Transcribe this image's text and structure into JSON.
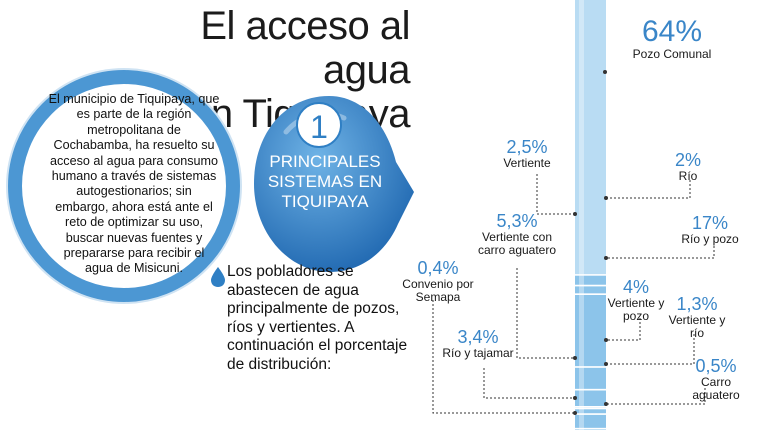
{
  "header": {
    "title_line1": "El acceso al agua",
    "title_line2": "en Tiquipaya"
  },
  "intro": {
    "text": "El municipio de Tiquipaya, que es parte de la región metropolitana de Cochabamba, ha resuelto su acceso al agua para consumo humano a través de sistemas autogestionarios; sin embargo, ahora está ante el reto de optimizar su uso, buscar nuevas fuentes y prepararse para recibir el agua de Misicuni."
  },
  "badge": {
    "number": "1",
    "text": "PRINCIPALES SISTEMAS EN TIQUIPAYA"
  },
  "lower_text": "Los pobladores se abastecen de agua principalmente de pozos, ríos y vertientes. A continuación el porcentaje de distribución:",
  "colors": {
    "accent": "#3a86c8",
    "ring": "#4c97d3",
    "column": "#8cc4ea",
    "column_light": "#b9dcf3"
  },
  "chart_data": {
    "type": "bar",
    "stacked": true,
    "orientation": "vertical",
    "categories": [
      "Pozo Comunal",
      "Vertiente",
      "Río",
      "Río y pozo",
      "Vertiente con carro aguatero",
      "Vertiente y pozo",
      "Convenio por Semapa",
      "Vertiente y río",
      "Río y tajamar",
      "Carro aguatero"
    ],
    "labels": [
      "64%",
      "2,5%",
      "2%",
      "17%",
      "5,3%",
      "4%",
      "0,4%",
      "1,3%",
      "3,4%",
      "0,5%"
    ],
    "values": [
      64,
      2.5,
      2,
      17,
      5.3,
      4,
      0.4,
      1.3,
      3.4,
      0.5
    ],
    "unit": "%"
  }
}
